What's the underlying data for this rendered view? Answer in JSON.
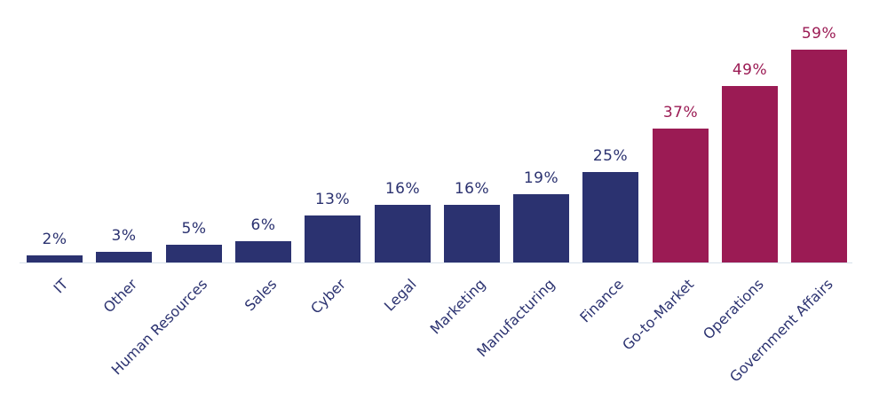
{
  "chart_data": {
    "type": "bar",
    "title": "",
    "xlabel": "",
    "ylabel": "",
    "ylim": [
      0,
      60
    ],
    "grid": false,
    "legend": null,
    "categories": [
      "IT",
      "Other",
      "Human Resources",
      "Sales",
      "Cyber",
      "Legal",
      "Marketing",
      "Manufacturing",
      "Finance",
      "Go-to-Market",
      "Operations",
      "Government Affairs"
    ],
    "values": [
      2,
      3,
      5,
      6,
      13,
      16,
      16,
      19,
      25,
      37,
      49,
      59
    ],
    "labels": [
      "2%",
      "3%",
      "5%",
      "6%",
      "13%",
      "16%",
      "16%",
      "19%",
      "25%",
      "37%",
      "49%",
      "59%"
    ],
    "colors": {
      "default": "#2b3270",
      "highlight": "#9b1b54"
    },
    "highlighted": [
      "Go-to-Market",
      "Operations",
      "Government Affairs"
    ]
  }
}
